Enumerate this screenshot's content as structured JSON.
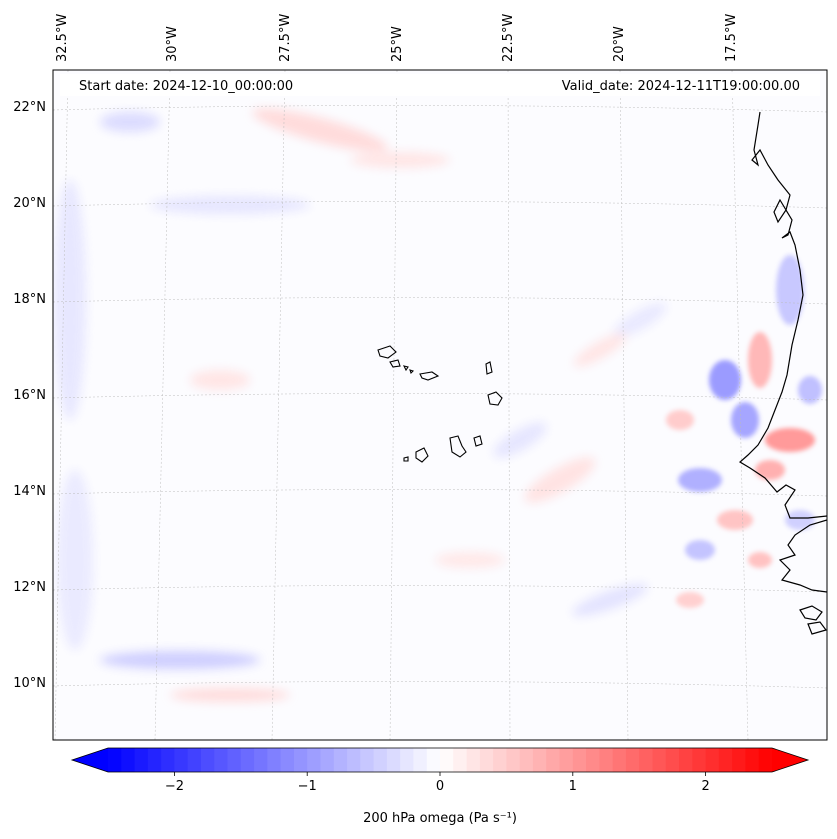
{
  "map": {
    "start_label": "Start date: 2024-12-10_00:00:00",
    "valid_label": "Valid_date: 2024-12-11T19:00:00.00",
    "lon_labels": [
      "32.5°W",
      "30°W",
      "27.5°W",
      "25°W",
      "22.5°W",
      "20°W",
      "17.5°W"
    ],
    "lat_labels": [
      "22°N",
      "20°N",
      "18°N",
      "16°N",
      "14°N",
      "12°N",
      "10°N"
    ]
  },
  "colorbar": {
    "label": "200 hPa omega (Pa s⁻¹)",
    "ticks": [
      {
        "value": -2,
        "label": "−2"
      },
      {
        "value": -1,
        "label": "−1"
      },
      {
        "value": 0,
        "label": "0"
      },
      {
        "value": 1,
        "label": "1"
      },
      {
        "value": 2,
        "label": "2"
      }
    ],
    "range": [
      -2.5,
      2.5
    ],
    "colors": {
      "low": "#0000ff",
      "mid": "#ffffff",
      "high": "#ff0000"
    }
  }
}
